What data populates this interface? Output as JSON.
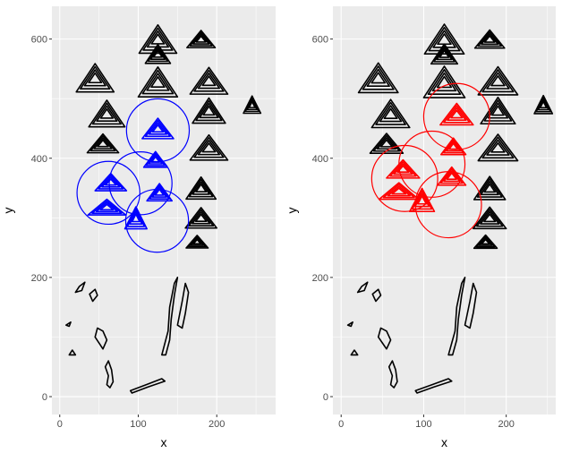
{
  "chart_data": [
    {
      "type": "scatter",
      "panel": "left",
      "xlabel": "x",
      "ylabel": "y",
      "xlim": [
        -10,
        275
      ],
      "ylim": [
        -30,
        655
      ],
      "x_ticks": [
        0,
        100,
        200
      ],
      "y_ticks": [
        0,
        200,
        400,
        600
      ],
      "x_tick_labels": [
        "0",
        "100",
        "200"
      ],
      "y_tick_labels": [
        "0",
        "200",
        "400",
        "600"
      ],
      "grid": true,
      "highlight_color": "#0000ff",
      "circles": [
        {
          "cx": 125,
          "cy": 447,
          "r": 40
        },
        {
          "cx": 103,
          "cy": 358,
          "r": 40
        },
        {
          "cx": 62,
          "cy": 342,
          "r": 40
        },
        {
          "cx": 124,
          "cy": 295,
          "r": 40
        }
      ],
      "highlighted_shapes": [
        {
          "cx": 125,
          "cy": 450,
          "w": 40,
          "h": 26
        },
        {
          "cx": 122,
          "cy": 398,
          "w": 30,
          "h": 20
        },
        {
          "cx": 127,
          "cy": 343,
          "w": 32,
          "h": 22
        },
        {
          "cx": 65,
          "cy": 360,
          "w": 40,
          "h": 22
        },
        {
          "cx": 60,
          "cy": 318,
          "w": 48,
          "h": 20
        },
        {
          "cx": 97,
          "cy": 300,
          "w": 28,
          "h": 28
        }
      ]
    },
    {
      "type": "scatter",
      "panel": "right",
      "xlabel": "x",
      "ylabel": "y",
      "xlim": [
        -10,
        260
      ],
      "ylim": [
        -30,
        655
      ],
      "x_ticks": [
        0,
        100,
        200
      ],
      "y_ticks": [
        0,
        200,
        400,
        600
      ],
      "x_tick_labels": [
        "0",
        "100",
        "200"
      ],
      "y_tick_labels": [
        "0",
        "200",
        "400",
        "600"
      ],
      "grid": true,
      "highlight_color": "#ff0000",
      "circles": [
        {
          "cx": 140,
          "cy": 470,
          "r": 40
        },
        {
          "cx": 110,
          "cy": 390,
          "r": 40
        },
        {
          "cx": 77,
          "cy": 366,
          "r": 40
        },
        {
          "cx": 130,
          "cy": 322,
          "r": 40
        }
      ],
      "highlighted_shapes": [
        {
          "cx": 140,
          "cy": 474,
          "w": 40,
          "h": 26
        },
        {
          "cx": 136,
          "cy": 420,
          "w": 30,
          "h": 20
        },
        {
          "cx": 134,
          "cy": 370,
          "w": 34,
          "h": 22
        },
        {
          "cx": 75,
          "cy": 382,
          "w": 40,
          "h": 22
        },
        {
          "cx": 70,
          "cy": 345,
          "w": 48,
          "h": 20
        },
        {
          "cx": 98,
          "cy": 330,
          "w": 30,
          "h": 28
        }
      ]
    }
  ],
  "contour_shapes": {
    "triangles": [
      {
        "cx": 125,
        "cy": 600,
        "w": 48,
        "h": 36
      },
      {
        "cx": 180,
        "cy": 600,
        "w": 36,
        "h": 22
      },
      {
        "cx": 125,
        "cy": 575,
        "w": 32,
        "h": 24
      },
      {
        "cx": 45,
        "cy": 535,
        "w": 48,
        "h": 36
      },
      {
        "cx": 125,
        "cy": 528,
        "w": 50,
        "h": 38
      },
      {
        "cx": 190,
        "cy": 530,
        "w": 48,
        "h": 34
      },
      {
        "cx": 60,
        "cy": 475,
        "w": 46,
        "h": 34
      },
      {
        "cx": 190,
        "cy": 480,
        "w": 42,
        "h": 32
      },
      {
        "cx": 245,
        "cy": 490,
        "w": 22,
        "h": 22
      },
      {
        "cx": 55,
        "cy": 425,
        "w": 40,
        "h": 24
      },
      {
        "cx": 190,
        "cy": 418,
        "w": 48,
        "h": 32
      },
      {
        "cx": 180,
        "cy": 350,
        "w": 38,
        "h": 28
      },
      {
        "cx": 180,
        "cy": 300,
        "w": 40,
        "h": 26
      },
      {
        "cx": 175,
        "cy": 260,
        "w": 28,
        "h": 16
      }
    ],
    "blobs": [
      {
        "points": [
          [
            20,
            175
          ],
          [
            25,
            185
          ],
          [
            32,
            192
          ],
          [
            28,
            178
          ]
        ]
      },
      {
        "points": [
          [
            38,
            172
          ],
          [
            45,
            180
          ],
          [
            48,
            170
          ],
          [
            42,
            160
          ]
        ]
      },
      {
        "points": [
          [
            45,
            100
          ],
          [
            50,
            90
          ],
          [
            55,
            80
          ],
          [
            60,
            95
          ],
          [
            55,
            110
          ],
          [
            48,
            115
          ]
        ]
      },
      {
        "points": [
          [
            60,
            20
          ],
          [
            62,
            35
          ],
          [
            58,
            50
          ],
          [
            62,
            60
          ],
          [
            66,
            45
          ],
          [
            68,
            25
          ],
          [
            64,
            15
          ]
        ]
      },
      {
        "points": [
          [
            130,
            70
          ],
          [
            138,
            110
          ],
          [
            140,
            150
          ],
          [
            146,
            190
          ],
          [
            150,
            200
          ],
          [
            146,
            170
          ],
          [
            142,
            130
          ],
          [
            140,
            95
          ],
          [
            135,
            70
          ]
        ]
      },
      {
        "points": [
          [
            150,
            120
          ],
          [
            156,
            160
          ],
          [
            160,
            190
          ],
          [
            164,
            175
          ],
          [
            160,
            140
          ],
          [
            156,
            115
          ]
        ]
      },
      {
        "points": [
          [
            90,
            10
          ],
          [
            110,
            20
          ],
          [
            130,
            30
          ],
          [
            134,
            26
          ],
          [
            112,
            16
          ],
          [
            92,
            6
          ]
        ]
      },
      {
        "points": [
          [
            12,
            70
          ],
          [
            16,
            78
          ],
          [
            20,
            70
          ]
        ]
      },
      {
        "points": [
          [
            8,
            120
          ],
          [
            14,
            125
          ],
          [
            12,
            118
          ]
        ]
      }
    ]
  }
}
